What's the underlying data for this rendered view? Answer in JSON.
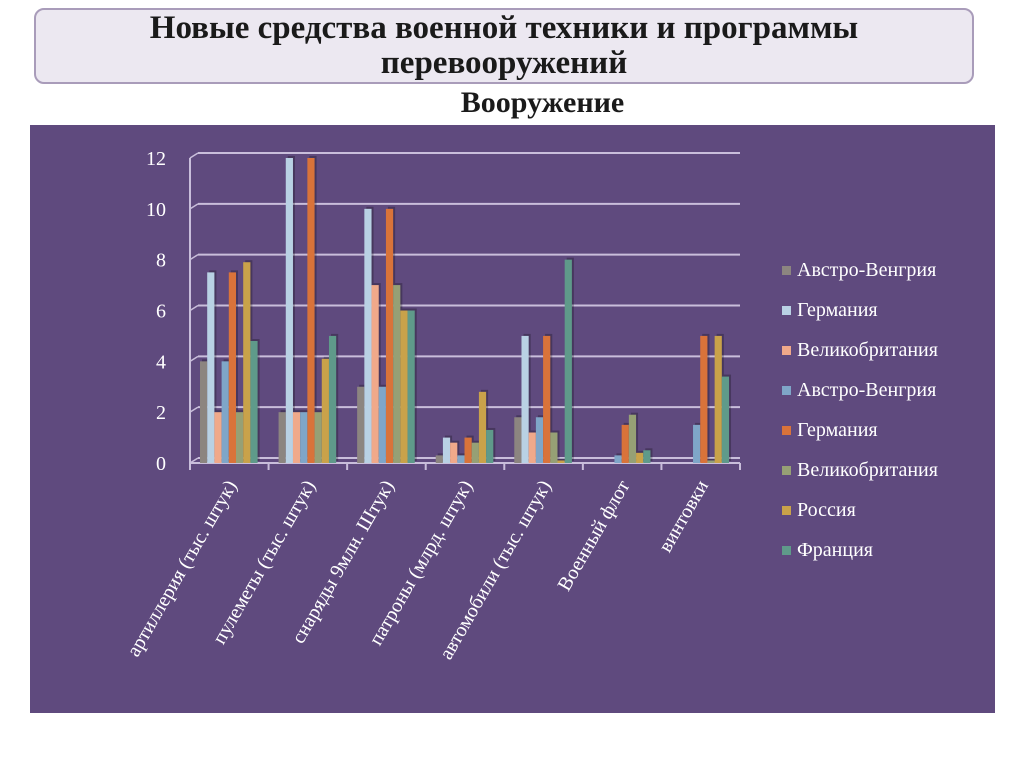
{
  "header": {
    "title": "Новые средства военной техники и программы перевооружений"
  },
  "chart_data": {
    "type": "bar",
    "title": "Вооружение",
    "categories": [
      "артиллерия (тыс. штук)",
      "пулеметы (тыс. штук)",
      "снаряды 9млн. Штук)",
      "патроны (млрд. штук)",
      "автомобили (тыс. штук)",
      "Военный флот",
      "винтовки"
    ],
    "ylim": [
      0,
      12
    ],
    "yticks": [
      0,
      2,
      4,
      6,
      8,
      10,
      12
    ],
    "grid": true,
    "legend": "right",
    "background": "#5f4a7e",
    "series": [
      {
        "name": "Австро-Венгрия",
        "color": "#8c8580",
        "values": [
          4,
          2,
          3,
          0.3,
          1.8,
          0,
          0
        ]
      },
      {
        "name": "Германия",
        "color": "#b9d1e4",
        "values": [
          7.5,
          12,
          10,
          1,
          5,
          0,
          0
        ]
      },
      {
        "name": "Великобритания",
        "color": "#f0a98a",
        "values": [
          2,
          2,
          7,
          0.8,
          1.2,
          0,
          0
        ]
      },
      {
        "name": "Австро-Венгрия",
        "color": "#7fa6c8",
        "values": [
          4,
          2,
          3,
          0.3,
          1.8,
          0.3,
          1.5
        ]
      },
      {
        "name": "Германия",
        "color": "#d9733a",
        "values": [
          7.5,
          12,
          10,
          1,
          5,
          1.5,
          5
        ]
      },
      {
        "name": "Великобритания",
        "color": "#96a075",
        "values": [
          2,
          2,
          7,
          0.8,
          1.2,
          1.9,
          0.1
        ]
      },
      {
        "name": "Россия",
        "color": "#c9a24a",
        "values": [
          7.9,
          4.1,
          6,
          2.8,
          0.1,
          0.4,
          5
        ]
      },
      {
        "name": "Франция",
        "color": "#5f9a8a",
        "values": [
          4.8,
          5,
          6,
          1.3,
          8,
          0.5,
          3.4
        ]
      }
    ]
  }
}
